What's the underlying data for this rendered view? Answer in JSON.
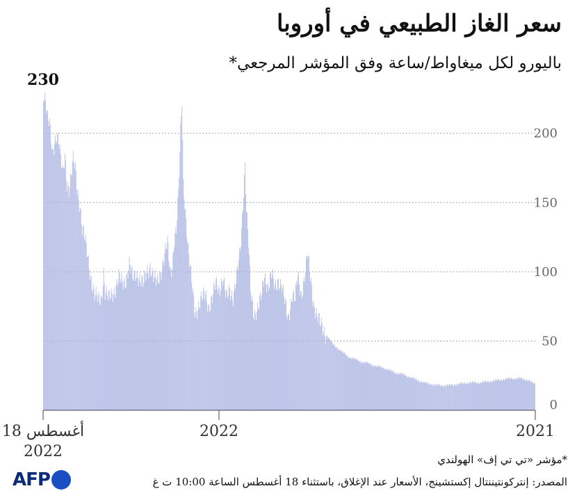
{
  "title": "سعر الغاز الطبيعي في أوروبا",
  "subtitle": "باليورو لكل ميغاواط/ساعة وفق المؤشر المرجعي*",
  "footnote": "*مؤشر «تي تي إف» الهولندي",
  "source": "المصدر: إنتركونتيننتال إكستشينج، الأسعار عند الإغلاق، باستثناء 18 أغسطس الساعة 10:00 ت غ",
  "logo": {
    "text": "AFP",
    "icon": "afp-logo-dot",
    "color": "#1a4fc4"
  },
  "colors": {
    "bars": "#aab4e2",
    "grid": "#888888"
  },
  "chart_data": {
    "type": "bar",
    "time_direction": "right-to-left",
    "xlabel": "",
    "ylabel": "",
    "ylim": [
      0,
      230
    ],
    "yticks": [
      0,
      50,
      100,
      150,
      200
    ],
    "grid": "horizontal-dotted",
    "x_labels": [
      {
        "text": "2021",
        "position": "start"
      },
      {
        "text": "2022",
        "position": "start-of-year"
      },
      {
        "text": "18 أغسطس",
        "line2": "2022",
        "position": "end"
      }
    ],
    "max_label": {
      "value": "230"
    },
    "series": [
      {
        "keypoints_right_to_left": [
          [
            0,
            19
          ],
          [
            4,
            20
          ],
          [
            10,
            22
          ],
          [
            22,
            23
          ],
          [
            35,
            23
          ],
          [
            50,
            22
          ],
          [
            65,
            21
          ],
          [
            80,
            20
          ],
          [
            95,
            20
          ],
          [
            110,
            19
          ],
          [
            125,
            18
          ],
          [
            140,
            18
          ],
          [
            150,
            19
          ],
          [
            160,
            20
          ],
          [
            170,
            22
          ],
          [
            180,
            24
          ],
          [
            190,
            26
          ],
          [
            200,
            27
          ],
          [
            210,
            29
          ],
          [
            220,
            31
          ],
          [
            230,
            32
          ],
          [
            240,
            34
          ],
          [
            250,
            35
          ],
          [
            260,
            37
          ],
          [
            270,
            39
          ],
          [
            280,
            43
          ],
          [
            290,
            47
          ],
          [
            300,
            54
          ],
          [
            305,
            58
          ],
          [
            310,
            62
          ],
          [
            315,
            70
          ],
          [
            320,
            80
          ],
          [
            325,
            100
          ],
          [
            328,
            112
          ],
          [
            333,
            95
          ],
          [
            337,
            84
          ],
          [
            342,
            96
          ],
          [
            346,
            80
          ],
          [
            350,
            85
          ],
          [
            356,
            66
          ],
          [
            360,
            75
          ],
          [
            365,
            90
          ],
          [
            370,
            95
          ],
          [
            375,
            88
          ],
          [
            380,
            98
          ],
          [
            385,
            90
          ],
          [
            390,
            97
          ],
          [
            395,
            80
          ],
          [
            400,
            74
          ],
          [
            405,
            70
          ],
          [
            410,
            85
          ],
          [
            413,
            120
          ],
          [
            416,
            145
          ],
          [
            418,
            178
          ],
          [
            420,
            160
          ],
          [
            422,
            140
          ],
          [
            425,
            115
          ],
          [
            430,
            95
          ],
          [
            435,
            82
          ],
          [
            440,
            88
          ],
          [
            445,
            80
          ],
          [
            450,
            95
          ],
          [
            455,
            88
          ],
          [
            460,
            92
          ],
          [
            465,
            80
          ],
          [
            470,
            75
          ],
          [
            475,
            85
          ],
          [
            480,
            80
          ],
          [
            485,
            75
          ],
          [
            490,
            72
          ],
          [
            495,
            92
          ],
          [
            500,
            115
          ],
          [
            504,
            145
          ],
          [
            507,
            165
          ],
          [
            509,
            225
          ],
          [
            511,
            200
          ],
          [
            514,
            155
          ],
          [
            517,
            130
          ],
          [
            520,
            125
          ],
          [
            523,
            105
          ],
          [
            526,
            100
          ],
          [
            530,
            120
          ],
          [
            535,
            110
          ],
          [
            540,
            100
          ],
          [
            545,
            92
          ],
          [
            550,
            95
          ],
          [
            555,
            105
          ],
          [
            560,
            100
          ],
          [
            565,
            90
          ],
          [
            570,
            95
          ],
          [
            575,
            100
          ],
          [
            580,
            95
          ],
          [
            585,
            105
          ],
          [
            590,
            95
          ],
          [
            595,
            92
          ],
          [
            600,
            95
          ],
          [
            605,
            88
          ],
          [
            610,
            85
          ],
          [
            615,
            80
          ],
          [
            620,
            85
          ],
          [
            622,
            100
          ],
          [
            625,
            82
          ],
          [
            630,
            80
          ],
          [
            635,
            82
          ],
          [
            640,
            95
          ],
          [
            643,
            105
          ],
          [
            646,
            115
          ],
          [
            650,
            125
          ],
          [
            653,
            130
          ],
          [
            656,
            148
          ],
          [
            660,
            160
          ],
          [
            663,
            175
          ],
          [
            666,
            180
          ],
          [
            669,
            168
          ],
          [
            672,
            160
          ],
          [
            675,
            165
          ],
          [
            678,
            185
          ],
          [
            681,
            170
          ],
          [
            684,
            180
          ],
          [
            687,
            195
          ],
          [
            690,
            200
          ],
          [
            693,
            195
          ],
          [
            696,
            185
          ],
          [
            700,
            205
          ],
          [
            703,
            210
          ],
          [
            706,
            225
          ],
          [
            709,
            230
          ]
        ]
      }
    ],
    "note": "ٍ"
  }
}
